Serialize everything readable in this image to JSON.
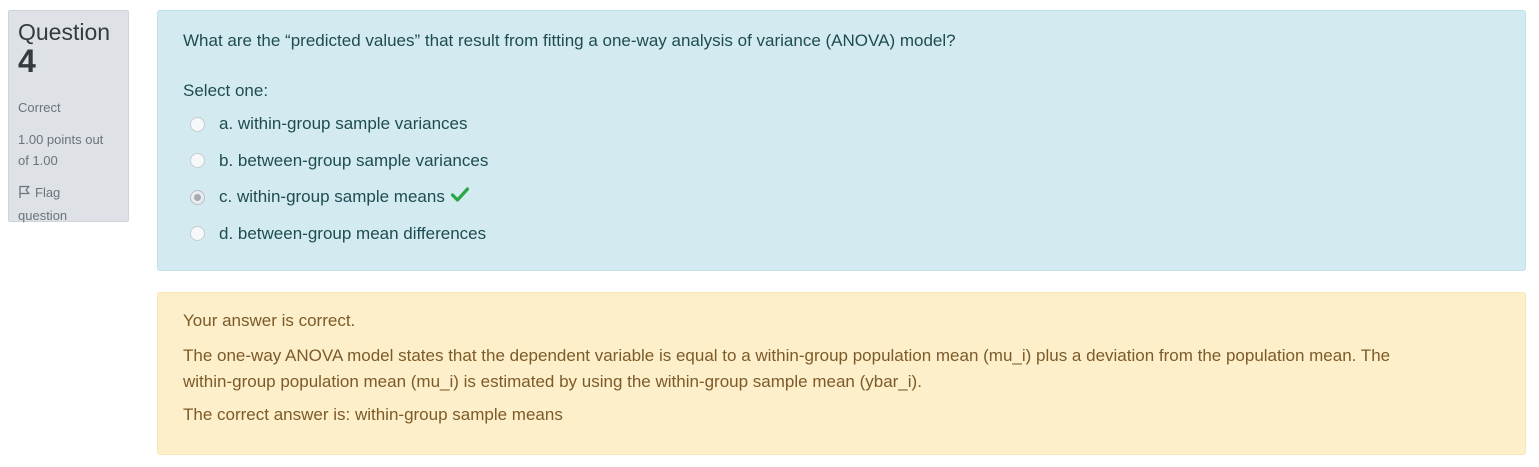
{
  "info": {
    "question_label": "Question",
    "question_number": "4",
    "state": "Correct",
    "grade_line1": "1.00 points out",
    "grade_line2": "of 1.00",
    "flag_label": "Flag",
    "flag_label2": "question",
    "flag_icon": "flag-outline-icon"
  },
  "question": {
    "text": "What are the “predicted values” that result from fitting a one-way analysis of variance (ANOVA) model?",
    "prompt": "Select one:",
    "answers": [
      {
        "label": "a. within-group sample variances",
        "selected": false
      },
      {
        "label": "b. between-group sample variances",
        "selected": false
      },
      {
        "label": "c. within-group sample means",
        "selected": true,
        "correct_icon": "checkmark-icon"
      },
      {
        "label": "d. between-group mean differences",
        "selected": false
      }
    ]
  },
  "outcome": {
    "feedback": "Your answer is correct.",
    "general_line1": "The one-way ANOVA model states that the dependent variable is equal to a within-group population mean (mu_i) plus a deviation from the population mean. The",
    "general_line2": "within-group population mean (mu_i) is estimated by using the within-group sample mean (ybar_i).",
    "right_answer": "The correct answer is: within-group sample means"
  },
  "colors": {
    "info_bg": "#dee2e6",
    "formulation_bg": "#d3ebf0",
    "outcome_bg": "#fcefc9",
    "check_green": "#28a745"
  }
}
